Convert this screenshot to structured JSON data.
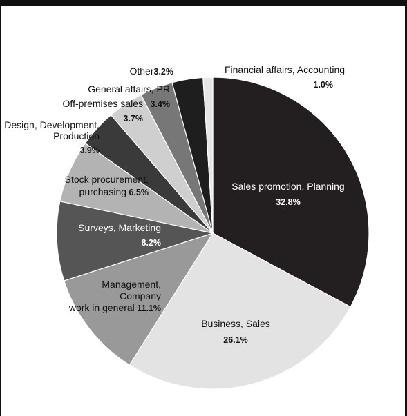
{
  "chart_data": {
    "type": "pie",
    "title": "",
    "slices": [
      {
        "label_lines": [
          "Sales promotion, Planning"
        ],
        "value_text": "32.8%",
        "value": 32.8,
        "color": "#231f20",
        "text_color": "#ffffff"
      },
      {
        "label_lines": [
          "Business, Sales"
        ],
        "value_text": "26.1%",
        "value": 26.1,
        "color": "#e3e3e3",
        "text_color": "#111111"
      },
      {
        "label_lines": [
          "Management,",
          "Company",
          "work in general"
        ],
        "value_text": "11.1%",
        "value": 11.1,
        "color": "#999999",
        "text_color": "#111111"
      },
      {
        "label_lines": [
          "Surveys, Marketing"
        ],
        "value_text": "8.2%",
        "value": 8.2,
        "color": "#555555",
        "text_color": "#ffffff"
      },
      {
        "label_lines": [
          "Stock procurement,",
          "purchasing"
        ],
        "value_text": "6.5%",
        "value": 6.5,
        "color": "#b3b3b3",
        "text_color": "#111111"
      },
      {
        "label_lines": [
          "Design, Development,",
          "Production"
        ],
        "value_text": "3.9%",
        "value": 3.9,
        "color": "#3a3a3a",
        "text_color": "#111111"
      },
      {
        "label_lines": [
          "Off-premises sales"
        ],
        "value_text": "3.7%",
        "value": 3.7,
        "color": "#cfcfcf",
        "text_color": "#111111"
      },
      {
        "label_lines": [
          "General affairs, PR"
        ],
        "value_text": "3.4%",
        "value": 3.4,
        "color": "#777777",
        "text_color": "#111111"
      },
      {
        "label_lines": [
          "Other"
        ],
        "value_text": "3.2%",
        "value": 3.2,
        "color": "#1e1e1e",
        "text_color": "#111111"
      },
      {
        "label_lines": [
          "Financial affairs, Accounting"
        ],
        "value_text": "1.0%",
        "value": 1.0,
        "color": "#e6e6e6",
        "text_color": "#111111"
      }
    ],
    "start_angle_deg": 0,
    "direction": "clockwise"
  }
}
